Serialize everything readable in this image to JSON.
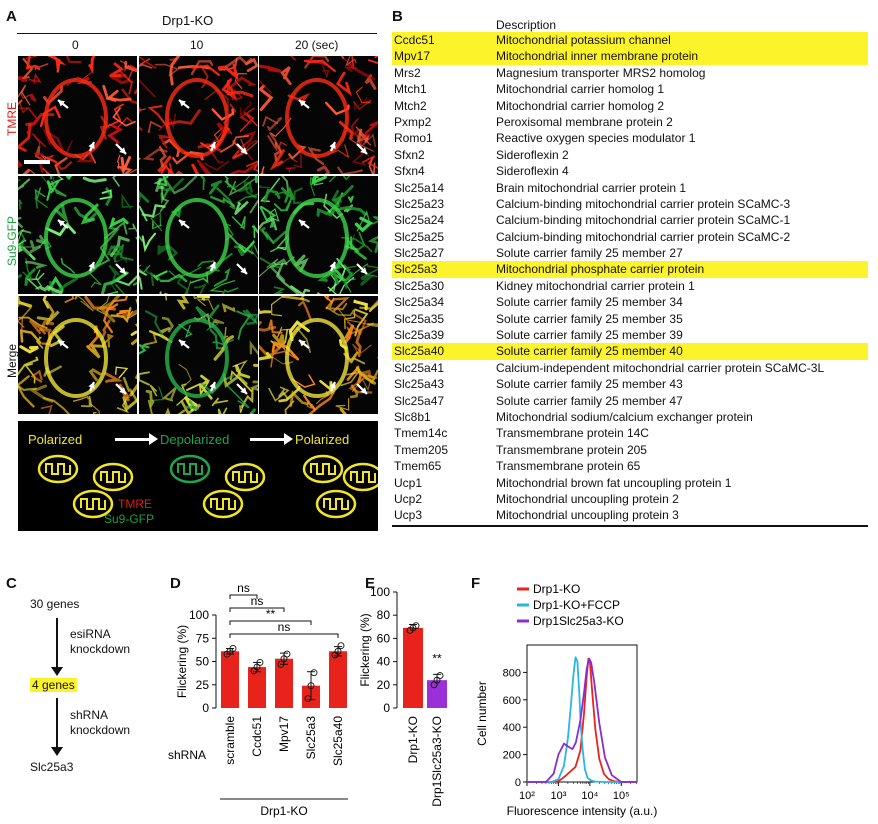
{
  "panel_a": {
    "label": "A",
    "title": "Drp1-KO",
    "timepoints": [
      "0",
      "10",
      "20 (sec)"
    ],
    "rows": [
      "TMRE",
      "Su9-GFP",
      "Merge"
    ],
    "row_colors": [
      "#e11b1b",
      "#19a33b",
      "#111111"
    ],
    "schematic": {
      "states": [
        "Polarized",
        "Depolarized",
        "Polarized"
      ],
      "legend_tmre": "TMRE",
      "legend_gfp": "Su9-GFP"
    }
  },
  "panel_b": {
    "label": "B",
    "header": "Description",
    "rows": [
      {
        "gene": "Ccdc51",
        "desc": "Mitochondrial potassium channel",
        "hl": true
      },
      {
        "gene": "Mpv17",
        "desc": "Mitochondrial inner membrane protein",
        "hl": true
      },
      {
        "gene": "Mrs2",
        "desc": "Magnesium transporter MRS2 homolog",
        "hl": false
      },
      {
        "gene": "Mtch1",
        "desc": "Mitochondrial carrier homolog 1",
        "hl": false
      },
      {
        "gene": "Mtch2",
        "desc": "Mitochondrial carrier homolog 2",
        "hl": false
      },
      {
        "gene": "Pxmp2",
        "desc": "Peroxisomal membrane protein 2",
        "hl": false
      },
      {
        "gene": "Romo1",
        "desc": "Reactive oxygen species modulator 1",
        "hl": false
      },
      {
        "gene": "Sfxn2",
        "desc": "Sideroflexin 2",
        "hl": false
      },
      {
        "gene": "Sfxn4",
        "desc": "Sideroflexin 4",
        "hl": false
      },
      {
        "gene": "Slc25a14",
        "desc": "Brain mitochondrial carrier protein 1",
        "hl": false
      },
      {
        "gene": "Slc25a23",
        "desc": "Calcium-binding mitochondrial carrier protein SCaMC-3",
        "hl": false
      },
      {
        "gene": "Slc25a24",
        "desc": "Calcium-binding mitochondrial carrier protein SCaMC-1",
        "hl": false
      },
      {
        "gene": "Slc25a25",
        "desc": "Calcium-binding mitochondrial carrier protein SCaMC-2",
        "hl": false
      },
      {
        "gene": "Slc25a27",
        "desc": "Solute carrier family 25 member 27",
        "hl": false
      },
      {
        "gene": "Slc25a3",
        "desc": "Mitochondrial phosphate carrier protein",
        "hl": true
      },
      {
        "gene": "Slc25a30",
        "desc": "Kidney mitochondrial carrier protein 1",
        "hl": false
      },
      {
        "gene": "Slc25a34",
        "desc": "Solute carrier family 25 member 34",
        "hl": false
      },
      {
        "gene": "Slc25a35",
        "desc": "Solute carrier family 25 member 35",
        "hl": false
      },
      {
        "gene": "Slc25a39",
        "desc": "Solute carrier family 25 member 39",
        "hl": false
      },
      {
        "gene": "Slc25a40",
        "desc": "Solute carrier family 25 member 40",
        "hl": true
      },
      {
        "gene": "Slc25a41",
        "desc": "Calcium-independent mitochondrial carrier protein SCaMC-3L",
        "hl": false
      },
      {
        "gene": "Slc25a43",
        "desc": "Solute carrier family 25 member 43",
        "hl": false
      },
      {
        "gene": "Slc25a47",
        "desc": "Solute carrier family 25 member 47",
        "hl": false
      },
      {
        "gene": "Slc8b1",
        "desc": "Mitochondrial sodium/calcium exchanger protein",
        "hl": false
      },
      {
        "gene": "Tmem14c",
        "desc": "Transmembrane protein 14C",
        "hl": false
      },
      {
        "gene": "Tmem205",
        "desc": "Transmembrane protein 205",
        "hl": false
      },
      {
        "gene": "Tmem65",
        "desc": "Transmembrane protein 65",
        "hl": false
      },
      {
        "gene": "Ucp1",
        "desc": "Mitochondrial brown fat uncoupling protein 1",
        "hl": false
      },
      {
        "gene": "Ucp2",
        "desc": "Mitochondrial uncoupling protein 2",
        "hl": false
      },
      {
        "gene": "Ucp3",
        "desc": "Mitochondrial uncoupling protein 3",
        "hl": false
      }
    ]
  },
  "panel_c": {
    "label": "C",
    "start": "30 genes",
    "step1": "esiRNA\nknockdown",
    "middle": "4 genes",
    "step2": "shRNA\nknockdown",
    "end": "Slc25a3"
  },
  "panel_d": {
    "label": "D"
  },
  "panel_e": {
    "label": "E"
  },
  "panel_f": {
    "label": "F"
  },
  "chart_data": [
    {
      "type": "bar",
      "panel": "D",
      "ylabel": "Flickering (%)",
      "categories": [
        "scramble",
        "Ccdc51",
        "Mpv17",
        "Slc25a3",
        "Slc25a40"
      ],
      "values": [
        61,
        44,
        53,
        24,
        61
      ],
      "errors": [
        3,
        5,
        6,
        15,
        5
      ],
      "points": [
        [
          58,
          61,
          64
        ],
        [
          40,
          44,
          49
        ],
        [
          47,
          53,
          58
        ],
        [
          10,
          24,
          38
        ],
        [
          57,
          61,
          67
        ]
      ],
      "ylim": [
        0,
        100
      ],
      "yticks": [
        0,
        25,
        50,
        75,
        100
      ],
      "group_prefix": "shRNA",
      "group_label": "Drp1-KO",
      "comparisons": [
        {
          "from": "scramble",
          "to": "Ccdc51",
          "label": "ns"
        },
        {
          "from": "scramble",
          "to": "Mpv17",
          "label": "ns"
        },
        {
          "from": "scramble",
          "to": "Slc25a3",
          "label": "**"
        },
        {
          "from": "scramble",
          "to": "Slc25a40",
          "label": "ns"
        }
      ],
      "bar_color": "#e8231b"
    },
    {
      "type": "bar",
      "panel": "E",
      "ylabel": "Flickering (%)",
      "categories": [
        "Drp1-KO",
        "Drp1Slc25a3-KO"
      ],
      "values": [
        69,
        24
      ],
      "errors": [
        3,
        5
      ],
      "points": [
        [
          67,
          69,
          71
        ],
        [
          20,
          24,
          28
        ]
      ],
      "ylim": [
        0,
        100
      ],
      "yticks": [
        0,
        20,
        40,
        60,
        80,
        100
      ],
      "annotation": "**",
      "colors": [
        "#e8231b",
        "#9b30d9"
      ]
    },
    {
      "type": "line",
      "panel": "F",
      "xlabel": "Fluorescence intensity (a.u.)",
      "ylabel": "Cell number",
      "xscale": "log",
      "xticks": [
        "10²",
        "10³",
        "10⁴",
        "10⁵"
      ],
      "xlim": [
        100,
        316228
      ],
      "ylim": [
        0,
        1000
      ],
      "yticks": [
        0,
        200,
        400,
        600,
        800
      ],
      "legend_position": "top-left",
      "series": [
        {
          "name": "Drp1-KO",
          "color": "#e8231b",
          "x": [
            100,
            560,
            1000,
            1600,
            2500,
            3500,
            5000,
            6500,
            8000,
            9000,
            10000,
            12000,
            15000,
            20000,
            28000,
            40000,
            60000,
            100000,
            316228
          ],
          "y": [
            0,
            0,
            5,
            40,
            80,
            110,
            230,
            500,
            780,
            900,
            880,
            650,
            380,
            170,
            60,
            20,
            5,
            0,
            0
          ]
        },
        {
          "name": "Drp1-KO+FCCP",
          "color": "#29b6e6",
          "x": [
            100,
            600,
            1000,
            1500,
            2000,
            2500,
            3000,
            3500,
            4000,
            4600,
            5200,
            6000,
            7000,
            8500,
            11000,
            15000,
            30000,
            316228
          ],
          "y": [
            0,
            0,
            20,
            120,
            320,
            560,
            780,
            910,
            880,
            650,
            400,
            220,
            90,
            30,
            10,
            3,
            0,
            0
          ]
        },
        {
          "name": "Drp1Slc25a3-KO",
          "color": "#8b2bd1",
          "x": [
            100,
            400,
            700,
            1000,
            1500,
            2000,
            2800,
            3600,
            5000,
            6500,
            8000,
            9500,
            11000,
            14000,
            20000,
            30000,
            50000,
            100000,
            316228
          ],
          "y": [
            0,
            0,
            60,
            200,
            280,
            260,
            240,
            290,
            450,
            650,
            830,
            900,
            870,
            720,
            430,
            180,
            50,
            0,
            0
          ]
        }
      ]
    }
  ]
}
